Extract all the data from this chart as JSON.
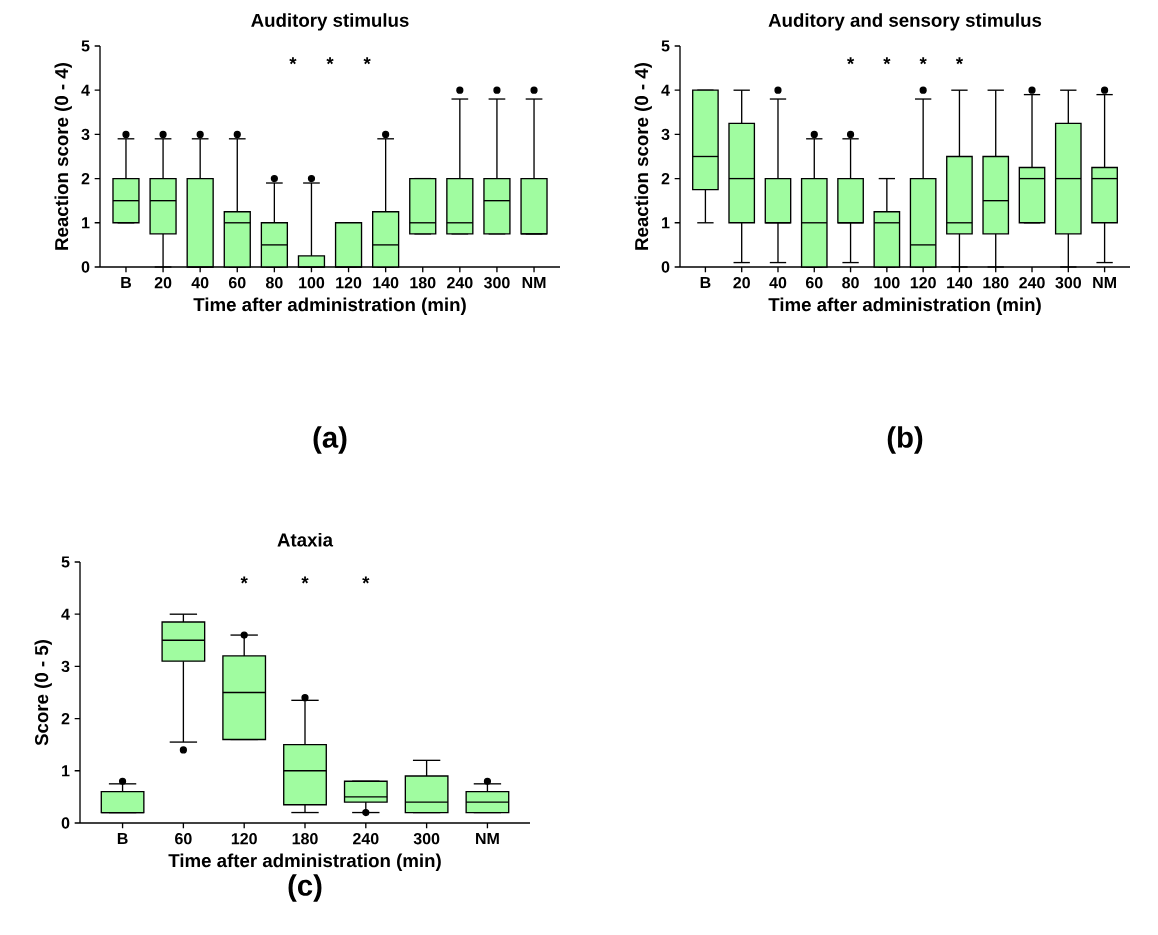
{
  "chart_data": [
    {
      "type": "box",
      "title": "Auditory stimulus",
      "xlabel": "Time after administration (min)",
      "ylabel": "Reaction score (0 - 4)",
      "color": "#a0fca0",
      "categories": [
        "B",
        "20",
        "40",
        "60",
        "80",
        "100",
        "120",
        "140",
        "180",
        "240",
        "300",
        "NM"
      ],
      "ylim": [
        0,
        5
      ],
      "yticks": [
        0,
        1,
        2,
        3,
        4,
        5
      ],
      "boxes": [
        {
          "low": 1,
          "q1": 1,
          "median": 1.5,
          "q3": 2,
          "high": 2.9,
          "outliers": [
            3
          ]
        },
        {
          "low": 0,
          "q1": 0.75,
          "median": 1.5,
          "q3": 2,
          "high": 2.9,
          "outliers": [
            3
          ]
        },
        {
          "low": 0,
          "q1": 0,
          "median": 0,
          "q3": 2,
          "high": 2.9,
          "outliers": [
            3
          ]
        },
        {
          "low": 0,
          "q1": 0,
          "median": 1,
          "q3": 1.25,
          "high": 2.9,
          "outliers": [
            3
          ]
        },
        {
          "low": 0,
          "q1": 0,
          "median": 0.5,
          "q3": 1,
          "high": 1.9,
          "outliers": [
            2
          ]
        },
        {
          "low": 0,
          "q1": 0,
          "median": 0,
          "q3": 0.25,
          "high": 1.9,
          "outliers": [
            2
          ]
        },
        {
          "low": 0,
          "q1": 0,
          "median": 0,
          "q3": 1,
          "high": 1
        },
        {
          "low": 0,
          "q1": 0,
          "median": 0.5,
          "q3": 1.25,
          "high": 2.9,
          "outliers": [
            3
          ]
        },
        {
          "low": 0.75,
          "q1": 0.75,
          "median": 1,
          "q3": 2,
          "high": 2
        },
        {
          "low": 0.75,
          "q1": 0.75,
          "median": 1,
          "q3": 2,
          "high": 3.8,
          "outliers": [
            4
          ]
        },
        {
          "low": 0.75,
          "q1": 0.75,
          "median": 1.5,
          "q3": 2,
          "high": 3.8,
          "outliers": [
            4
          ]
        },
        {
          "low": 0.75,
          "q1": 0.75,
          "median": 0.75,
          "q3": 2,
          "high": 3.8,
          "outliers": [
            4
          ]
        }
      ],
      "annotations": [
        "*",
        "*",
        "*",
        "(a)"
      ]
    },
    {
      "type": "box",
      "title": "Auditory and sensory stimulus",
      "xlabel": "Time after administration (min)",
      "ylabel": "Reaction score (0 - 4)",
      "color": "#a0fca0",
      "categories": [
        "B",
        "20",
        "40",
        "60",
        "80",
        "100",
        "120",
        "140",
        "180",
        "240",
        "300",
        "NM"
      ],
      "ylim": [
        0,
        5
      ],
      "yticks": [
        0,
        1,
        2,
        3,
        4,
        5
      ],
      "boxes": [
        {
          "low": 1,
          "q1": 1.75,
          "median": 2.5,
          "q3": 4,
          "high": 4
        },
        {
          "low": 0.1,
          "q1": 1,
          "median": 2,
          "q3": 3.25,
          "high": 4
        },
        {
          "low": 0.1,
          "q1": 1,
          "median": 1,
          "q3": 2,
          "high": 3.8,
          "outliers": [
            4
          ]
        },
        {
          "low": 0,
          "q1": 0,
          "median": 1,
          "q3": 2,
          "high": 2.9,
          "outliers": [
            3
          ]
        },
        {
          "low": 0.1,
          "q1": 1,
          "median": 1,
          "q3": 2,
          "high": 2.9,
          "outliers": [
            3
          ]
        },
        {
          "low": 0,
          "q1": 0,
          "median": 1,
          "q3": 1.25,
          "high": 2
        },
        {
          "low": 0,
          "q1": 0,
          "median": 0.5,
          "q3": 2,
          "high": 3.8,
          "outliers": [
            4
          ]
        },
        {
          "low": 0,
          "q1": 0.75,
          "median": 1,
          "q3": 2.5,
          "high": 4
        },
        {
          "low": 0,
          "q1": 0.75,
          "median": 1.5,
          "q3": 2.5,
          "high": 4
        },
        {
          "low": 1,
          "q1": 1,
          "median": 2,
          "q3": 2.25,
          "high": 3.9,
          "outliers": [
            4
          ]
        },
        {
          "low": 0,
          "q1": 0.75,
          "median": 2,
          "q3": 3.25,
          "high": 4
        },
        {
          "low": 0.1,
          "q1": 1,
          "median": 2,
          "q3": 2.25,
          "high": 3.9,
          "outliers": [
            4
          ]
        }
      ],
      "annotations": [
        "*",
        "*",
        "*",
        "*",
        "(b)"
      ]
    },
    {
      "type": "box",
      "title": "Ataxia",
      "xlabel": "Time after administration (min)",
      "ylabel": "Score (0 - 5)",
      "color": "#a0fca0",
      "categories": [
        "B",
        "60",
        "120",
        "180",
        "240",
        "300",
        "NM"
      ],
      "ylim": [
        0,
        5
      ],
      "yticks": [
        0,
        1,
        2,
        3,
        4,
        5
      ],
      "boxes": [
        {
          "low": 0.2,
          "q1": 0.2,
          "median": 0.2,
          "q3": 0.6,
          "high": 0.75,
          "outliers": [
            0.8
          ]
        },
        {
          "low": 1.55,
          "q1": 3.1,
          "median": 3.5,
          "q3": 3.85,
          "high": 4,
          "outliers": [
            1.4
          ]
        },
        {
          "low": 1.6,
          "q1": 1.6,
          "median": 2.5,
          "q3": 3.2,
          "high": 3.6,
          "outliers": [
            3.6
          ]
        },
        {
          "low": 0.2,
          "q1": 0.35,
          "median": 1,
          "q3": 1.5,
          "high": 2.35,
          "outliers": [
            2.4
          ]
        },
        {
          "low": 0.2,
          "q1": 0.4,
          "median": 0.5,
          "q3": 0.8,
          "high": 0.8,
          "outliers": [
            0.2
          ]
        },
        {
          "low": 0.2,
          "q1": 0.2,
          "median": 0.4,
          "q3": 0.9,
          "high": 1.2
        },
        {
          "low": 0.2,
          "q1": 0.2,
          "median": 0.4,
          "q3": 0.6,
          "high": 0.75,
          "outliers": [
            0.8
          ]
        }
      ],
      "annotations": [
        "*",
        "*",
        "*",
        "(c)"
      ]
    }
  ]
}
